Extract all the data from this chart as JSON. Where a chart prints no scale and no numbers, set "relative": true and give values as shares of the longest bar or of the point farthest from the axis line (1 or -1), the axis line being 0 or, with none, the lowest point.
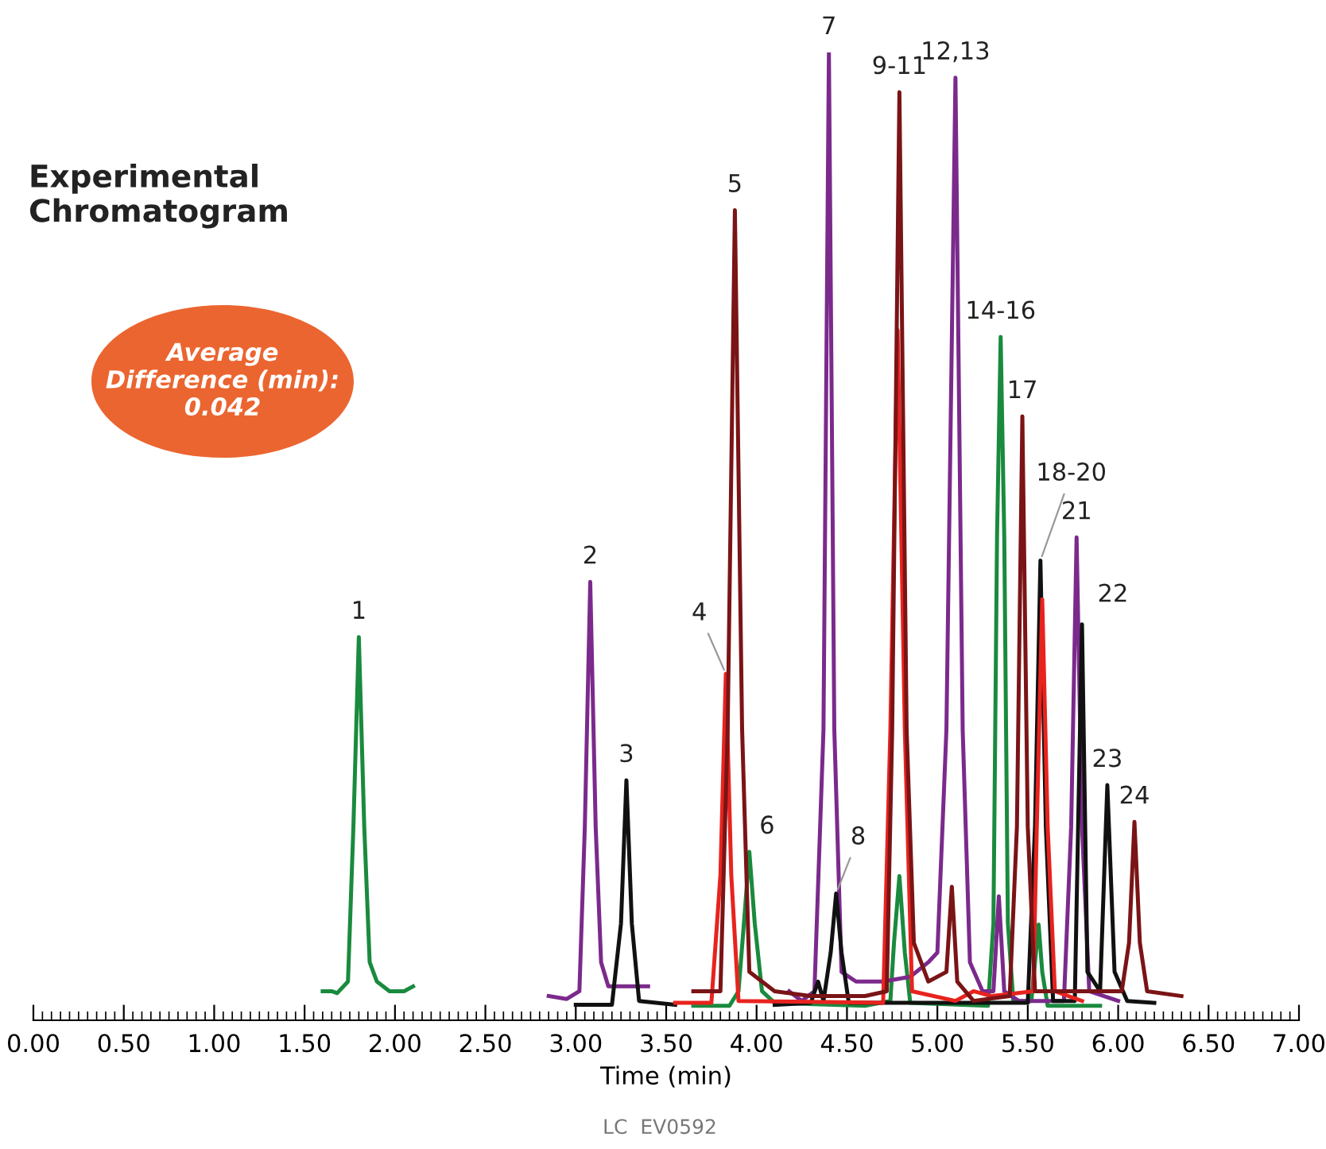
{
  "chart_data": {
    "type": "line",
    "relative": true,
    "title": "Experimental\nChromatogram",
    "xlabel": "Time (min)",
    "xlim": [
      0,
      7
    ],
    "xticks": [
      {
        "value": 0,
        "label": "0.00"
      },
      {
        "value": 0.5,
        "label": "0.50"
      },
      {
        "value": 1,
        "label": "1.00"
      },
      {
        "value": 1.5,
        "label": "1.50"
      },
      {
        "value": 2,
        "label": "2.00"
      },
      {
        "value": 2.5,
        "label": "2.50"
      },
      {
        "value": 3,
        "label": "3.00"
      },
      {
        "value": 3.5,
        "label": "3.50"
      },
      {
        "value": 4,
        "label": "4.00"
      },
      {
        "value": 4.5,
        "label": "4.50"
      },
      {
        "value": 5,
        "label": "5.00"
      },
      {
        "value": 5.5,
        "label": "5.50"
      },
      {
        "value": 6,
        "label": "6.00"
      },
      {
        "value": 6.5,
        "label": "6.50"
      },
      {
        "value": 7,
        "label": "7.00"
      }
    ],
    "grid": false,
    "legend": false,
    "marker": "none",
    "line_style": "solid",
    "series": [
      {
        "color": "#1a8a3e",
        "x": [
          1.6,
          1.65,
          1.68,
          1.74,
          1.77,
          1.8,
          1.83,
          1.86,
          1.9,
          1.97,
          2.05,
          2.1,
          2.5,
          3.65,
          3.85,
          3.9,
          3.93,
          3.96,
          3.99,
          4.03,
          4.1,
          4.6,
          4.74,
          4.76,
          4.79,
          4.82,
          4.85,
          5.28,
          5.31,
          5.33,
          5.35,
          5.37,
          5.39,
          5.42,
          5.52,
          5.54,
          5.56,
          5.58,
          5.61,
          5.9
        ],
        "values": [
          0.03,
          0.03,
          0.028,
          0.04,
          0.2,
          0.396,
          0.2,
          0.06,
          0.04,
          0.03,
          0.03,
          0.035,
          null,
          0.015,
          0.015,
          0.03,
          0.1,
          0.174,
          0.1,
          0.03,
          0.018,
          0.015,
          0.02,
          0.08,
          0.149,
          0.07,
          0.018,
          0.015,
          0.1,
          0.5,
          0.706,
          0.5,
          0.1,
          0.02,
          0.02,
          0.06,
          0.099,
          0.05,
          0.015,
          0.015
        ]
      },
      {
        "color": "#7b2a8c",
        "x": [
          2.85,
          2.95,
          3.02,
          3.05,
          3.08,
          3.11,
          3.14,
          3.18,
          3.3,
          3.4,
          3.7,
          4.18,
          4.25,
          4.32,
          4.37,
          4.4,
          4.43,
          4.47,
          4.55,
          4.7,
          4.85,
          4.95,
          5.0,
          5.05,
          5.1,
          5.14,
          5.18,
          5.25,
          5.31,
          5.34,
          5.37,
          5.45,
          5.7,
          5.74,
          5.77,
          5.8,
          5.84,
          6.0
        ],
        "values": [
          0.025,
          0.022,
          0.03,
          0.2,
          0.453,
          0.2,
          0.06,
          0.035,
          0.035,
          0.035,
          null,
          0.03,
          0.02,
          0.03,
          0.3,
          1.0,
          0.3,
          0.05,
          0.04,
          0.04,
          0.045,
          0.06,
          0.07,
          0.3,
          0.974,
          0.3,
          0.06,
          0.03,
          0.03,
          0.128,
          0.03,
          0.02,
          0.02,
          0.2,
          0.499,
          0.2,
          0.03,
          0.02
        ]
      },
      {
        "color": "#111111",
        "x": [
          3.0,
          3.2,
          3.25,
          3.28,
          3.31,
          3.35,
          3.55,
          3.8,
          4.1,
          4.3,
          4.34,
          4.37,
          4.41,
          4.44,
          4.47,
          4.51,
          5.5,
          5.54,
          5.57,
          5.6,
          5.64,
          5.76,
          5.8,
          5.83,
          5.9,
          5.94,
          5.98,
          6.05,
          6.2
        ],
        "values": [
          0.016,
          0.016,
          0.1,
          0.248,
          0.1,
          0.02,
          0.016,
          null,
          0.016,
          0.018,
          0.04,
          0.02,
          0.07,
          0.131,
          0.07,
          0.018,
          0.018,
          0.2,
          0.475,
          0.2,
          0.02,
          0.02,
          0.409,
          0.05,
          0.03,
          0.243,
          0.05,
          0.02,
          0.018
        ]
      },
      {
        "color": "#e8231e",
        "x": [
          3.55,
          3.75,
          3.8,
          3.83,
          3.86,
          3.9,
          4.7,
          4.74,
          4.78,
          4.82,
          4.86,
          5.1,
          5.2,
          5.3,
          5.53,
          5.55,
          5.58,
          5.61,
          5.65,
          5.8
        ],
        "values": [
          0.018,
          0.018,
          0.15,
          0.358,
          0.15,
          0.02,
          0.018,
          0.3,
          0.713,
          0.3,
          0.03,
          0.02,
          0.03,
          0.025,
          0.03,
          0.2,
          0.435,
          0.2,
          0.03,
          0.02
        ]
      },
      {
        "color": "#7a1416",
        "x": [
          3.65,
          3.8,
          3.84,
          3.88,
          3.92,
          3.96,
          4.1,
          4.3,
          4.6,
          4.72,
          4.75,
          4.79,
          4.83,
          4.87,
          4.95,
          5.05,
          5.08,
          5.11,
          5.2,
          5.4,
          5.44,
          5.47,
          5.5,
          5.54,
          6.02,
          6.06,
          6.09,
          6.12,
          6.16,
          6.35
        ],
        "values": [
          0.03,
          0.03,
          0.3,
          0.837,
          0.3,
          0.05,
          0.03,
          0.025,
          0.025,
          0.03,
          0.3,
          0.959,
          0.3,
          0.08,
          0.04,
          0.05,
          0.138,
          0.04,
          0.02,
          0.025,
          0.2,
          0.624,
          0.2,
          0.03,
          0.03,
          0.08,
          0.205,
          0.08,
          0.03,
          0.025
        ]
      }
    ],
    "annotations": [
      {
        "text": "1",
        "x": 1.8,
        "y": 0.396
      },
      {
        "text": "2",
        "x": 3.08,
        "y": 0.453
      },
      {
        "text": "3",
        "x": 3.28,
        "y": 0.248
      },
      {
        "text": "4",
        "x": 3.83,
        "y": 0.358
      },
      {
        "text": "5",
        "x": 3.88,
        "y": 0.837
      },
      {
        "text": "6",
        "x": 3.96,
        "y": 0.174
      },
      {
        "text": "7",
        "x": 4.4,
        "y": 1.0
      },
      {
        "text": "8",
        "x": 4.44,
        "y": 0.131
      },
      {
        "text": "9-11",
        "x": 4.79,
        "y": 0.959
      },
      {
        "text": "12,13",
        "x": 5.1,
        "y": 0.974
      },
      {
        "text": "14-16",
        "x": 5.35,
        "y": 0.706
      },
      {
        "text": "17",
        "x": 5.47,
        "y": 0.624
      },
      {
        "text": "18-20",
        "x": 5.57,
        "y": 0.475
      },
      {
        "text": "21",
        "x": 5.77,
        "y": 0.499
      },
      {
        "text": "22",
        "x": 5.8,
        "y": 0.409
      },
      {
        "text": "23",
        "x": 5.94,
        "y": 0.243
      },
      {
        "text": "24",
        "x": 6.09,
        "y": 0.205
      },
      "Average\nDifference (min):\n0.042",
      "LC  EV0592"
    ]
  }
}
